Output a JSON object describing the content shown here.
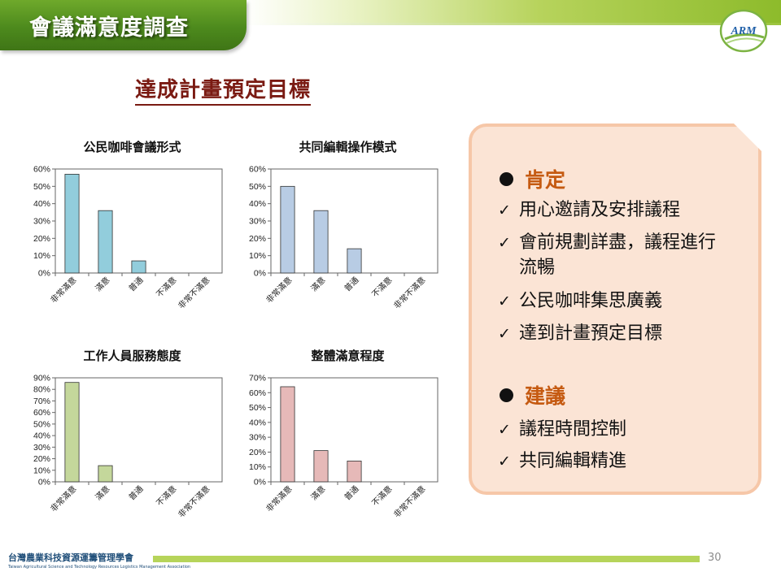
{
  "header": {
    "title": "會議滿意度調查",
    "logo_text": "ARM"
  },
  "subtitle": "達成計畫預定目標",
  "chart_data": [
    {
      "type": "bar",
      "title": "公民咖啡會議形式",
      "categories": [
        "非常滿意",
        "滿意",
        "普通",
        "不滿意",
        "非常不滿意"
      ],
      "values": [
        57,
        36,
        7,
        0,
        0
      ],
      "ylim": [
        0,
        60
      ],
      "yticks": [
        "0%",
        "10%",
        "20%",
        "30%",
        "40%",
        "50%",
        "60%"
      ],
      "grid": false,
      "color": "#92cddc"
    },
    {
      "type": "bar",
      "title": "共同編輯操作模式",
      "categories": [
        "非常滿意",
        "滿意",
        "普通",
        "不滿意",
        "非常不滿意"
      ],
      "values": [
        50,
        36,
        14,
        0,
        0
      ],
      "ylim": [
        0,
        60
      ],
      "yticks": [
        "0%",
        "10%",
        "20%",
        "30%",
        "40%",
        "50%",
        "60%"
      ],
      "grid": false,
      "color": "#b8cce4"
    },
    {
      "type": "bar",
      "title": "工作人員服務態度",
      "categories": [
        "非常滿意",
        "滿意",
        "普通",
        "不滿意",
        "非常不滿意"
      ],
      "values": [
        86,
        14,
        0,
        0,
        0
      ],
      "ylim": [
        0,
        90
      ],
      "yticks": [
        "0%",
        "10%",
        "20%",
        "30%",
        "40%",
        "50%",
        "60%",
        "70%",
        "80%",
        "90%"
      ],
      "grid": false,
      "color": "#c4d79b"
    },
    {
      "type": "bar",
      "title": "整體滿意程度",
      "categories": [
        "非常滿意",
        "滿意",
        "普通",
        "不滿意",
        "非常不滿意"
      ],
      "values": [
        64,
        21,
        14,
        0,
        0
      ],
      "ylim": [
        0,
        70
      ],
      "yticks": [
        "0%",
        "10%",
        "20%",
        "30%",
        "40%",
        "50%",
        "60%",
        "70%"
      ],
      "grid": false,
      "color": "#e6b9b8"
    }
  ],
  "panel": {
    "sections": [
      {
        "title": "肯定",
        "items": [
          "用心邀請及安排議程",
          "會前規劃詳盡，議程進行流暢",
          "公民咖啡集思廣義",
          "達到計畫預定目標"
        ]
      },
      {
        "title": "建議",
        "items": [
          "議程時間控制",
          "共同編輯精進"
        ]
      }
    ]
  },
  "footer": {
    "org_name": "台灣農業科技資源運籌管理學會",
    "org_name_en": "Taiwan Agricultural Science and Technology Resources Logistics Management Association",
    "page_number": "30"
  },
  "colors": {
    "accent_green": "#4d8a1d",
    "subtitle": "#7a1a12",
    "section_title": "#c55a11",
    "panel_bg": "#fbe4d5"
  }
}
